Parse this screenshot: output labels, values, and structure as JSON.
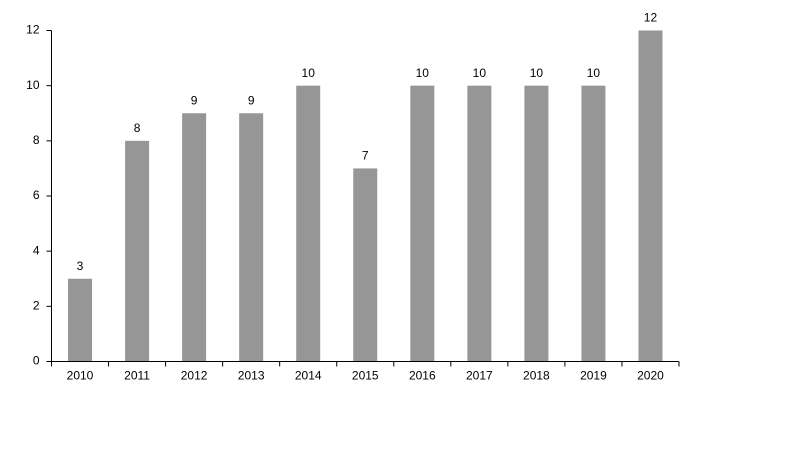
{
  "chart_data": {
    "type": "bar",
    "categories": [
      "2010",
      "2011",
      "2012",
      "2013",
      "2014",
      "2015",
      "2016",
      "2017",
      "2018",
      "2019",
      "2020"
    ],
    "values": [
      3,
      8,
      9,
      9,
      10,
      7,
      10,
      10,
      10,
      10,
      12
    ],
    "color": "#969696",
    "ylim": [
      0,
      12
    ],
    "yticks": [
      0,
      2,
      4,
      6,
      8,
      10,
      12
    ],
    "grid": false
  }
}
